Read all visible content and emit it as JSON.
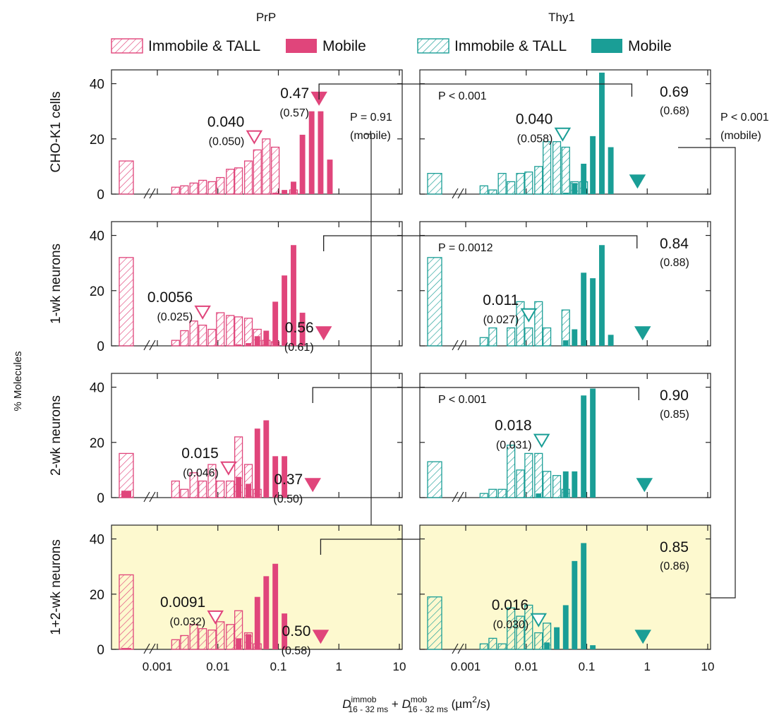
{
  "figure": {
    "column_titles": [
      "PrP",
      "Thy1"
    ],
    "row_labels": [
      "CHO-K1 cells",
      "1-wk neurons",
      "2-wk neurons",
      "1+2-wk neurons"
    ],
    "y_axis_label": "% Molecules",
    "x_axis_label": {
      "main1": "D",
      "sup1": "immob",
      "sub1": "16 - 32 ms",
      "plus": " + ",
      "main2": "D",
      "sup2": "mob",
      "sub2": "16 - 32 ms",
      "unit_open": " (µm",
      "unit_sup": "2",
      "unit_close": "/s)"
    },
    "legend": [
      {
        "label": "Immobile & TALL",
        "style": "hatched",
        "color": "#e0457b"
      },
      {
        "label": "Mobile",
        "style": "solid",
        "color": "#e0457b"
      },
      {
        "label": "Immobile & TALL",
        "style": "hatched",
        "color": "#1a9e96"
      },
      {
        "label": "Mobile",
        "style": "solid",
        "color": "#1a9e96"
      }
    ],
    "colors": {
      "prp": "#e0457b",
      "thy1": "#1a9e96",
      "highlight": "#fdf9cf"
    },
    "y_ticks": [
      "0",
      "20",
      "40"
    ],
    "x_ticks": [
      "0.001",
      "0.01",
      "0.1",
      "1",
      "10"
    ],
    "between_stats": [
      {
        "row": 1,
        "text": "P = 0.91",
        "sub": "(mobile)"
      },
      {
        "row": 1,
        "text": "P < 0.001",
        "sub": "(mobile)"
      }
    ]
  },
  "chart_data": {
    "type": "bar",
    "x_scale": "log",
    "xlim": [
      0.0001,
      10
    ],
    "ylim": [
      0,
      45
    ],
    "x_bin_centers": [
      0.0014,
      0.002,
      0.0028,
      0.004,
      0.0056,
      0.008,
      0.011,
      0.016,
      0.022,
      0.032,
      0.045,
      0.063,
      0.089,
      0.126,
      0.178,
      0.25,
      0.355,
      0.5,
      0.71,
      1.0,
      1.41,
      2.0,
      2.82
    ],
    "panels": [
      {
        "protein": "PrP",
        "row": "CHO-K1 cells",
        "color": "#e0457b",
        "highlight": false,
        "immobile_lowest_bin": 12,
        "mobile_lowest_bin": 0,
        "immobile": [
          0,
          2.5,
          3,
          4,
          5,
          4.5,
          6,
          9,
          9.5,
          12,
          16,
          20,
          17,
          0,
          1.5,
          0,
          0,
          0,
          0,
          0,
          0,
          0,
          0
        ],
        "mobile": [
          0,
          0,
          0,
          0,
          0,
          0,
          0,
          0,
          0,
          0,
          0,
          0,
          0.5,
          1.5,
          4.5,
          21.5,
          30,
          30,
          12.5,
          0,
          0,
          0,
          0
        ],
        "immobile_marker_x": 0.04,
        "mobile_marker_x": 0.47,
        "immob_label": "0.040",
        "immob_sub": "(0.050)",
        "mob_label": "0.47",
        "mob_sub": "(0.57)",
        "p_text": ""
      },
      {
        "protein": "Thy1",
        "row": "CHO-K1 cells",
        "color": "#1a9e96",
        "highlight": false,
        "immobile_lowest_bin": 7.5,
        "mobile_lowest_bin": 0,
        "immobile": [
          0,
          3,
          1.5,
          7.5,
          4.5,
          7.5,
          8,
          10,
          19,
          19,
          17,
          4.5,
          4.5,
          0,
          0,
          0,
          0,
          0,
          0,
          0,
          0,
          0,
          0
        ],
        "mobile": [
          0,
          0,
          0,
          0,
          0,
          0,
          0,
          0,
          0,
          0,
          0.5,
          4,
          11,
          21,
          44,
          17,
          0,
          0,
          0,
          0,
          0,
          0,
          0
        ],
        "immobile_marker_x": 0.04,
        "mobile_marker_x": 0.69,
        "immob_label": "0.040",
        "immob_sub": "(0.058)",
        "mob_label": "0.69",
        "mob_sub": "(0.68)",
        "p_text": "P < 0.001"
      },
      {
        "protein": "PrP",
        "row": "1-wk neurons",
        "color": "#e0457b",
        "highlight": false,
        "immobile_lowest_bin": 32,
        "mobile_lowest_bin": 0,
        "immobile": [
          0,
          2,
          5.5,
          9,
          7.5,
          6,
          12,
          11,
          10.5,
          10,
          6,
          2,
          1.5,
          0,
          0,
          0,
          0,
          0,
          0,
          0,
          0,
          0,
          0
        ],
        "mobile": [
          0,
          0,
          0,
          0,
          0,
          0,
          0,
          0,
          0.5,
          1,
          3.5,
          5.5,
          16,
          25.5,
          36.5,
          12,
          0,
          0,
          0,
          0,
          0,
          0,
          0
        ],
        "immobile_marker_x": 0.0056,
        "mobile_marker_x": 0.56,
        "immob_label": "0.0056",
        "immob_sub": "(0.025)",
        "mob_label": "0.56",
        "mob_sub": "(0.61)",
        "p_text": "P = 0.0012"
      },
      {
        "protein": "Thy1",
        "row": "1-wk neurons",
        "color": "#1a9e96",
        "highlight": false,
        "immobile_lowest_bin": 32,
        "mobile_lowest_bin": 0,
        "immobile": [
          0,
          3,
          6.5,
          0,
          6.5,
          16,
          6.5,
          16,
          6.5,
          0,
          13,
          0,
          0,
          0,
          0,
          0,
          0,
          0,
          0,
          0,
          0,
          0,
          0
        ],
        "mobile": [
          0,
          0,
          0,
          0,
          0,
          0,
          0,
          0,
          0,
          0,
          2,
          6,
          26.5,
          24.5,
          36.5,
          4,
          0,
          0,
          0,
          0,
          0,
          0,
          0
        ],
        "immobile_marker_x": 0.011,
        "mobile_marker_x": 0.84,
        "immob_label": "0.011",
        "immob_sub": "(0.027)",
        "mob_label": "0.84",
        "mob_sub": "(0.88)",
        "p_text": ""
      },
      {
        "protein": "PrP",
        "row": "2-wk neurons",
        "color": "#e0457b",
        "highlight": false,
        "immobile_lowest_bin": 16,
        "mobile_lowest_bin": 2.5,
        "immobile": [
          0,
          6,
          3,
          9,
          6,
          12,
          6,
          6,
          22,
          12,
          3,
          0,
          0,
          0,
          0,
          0,
          0,
          0,
          0,
          0,
          0,
          0,
          0
        ],
        "mobile": [
          0,
          0,
          0,
          0,
          0,
          0,
          0,
          0,
          7.5,
          5,
          25,
          28,
          15,
          15,
          0,
          0,
          0,
          0,
          0,
          0,
          0,
          0,
          0
        ],
        "immobile_marker_x": 0.015,
        "mobile_marker_x": 0.37,
        "immob_label": "0.015",
        "immob_sub": "(0.046)",
        "mob_label": "0.37",
        "mob_sub": "(0.50)",
        "p_text": "P < 0.001"
      },
      {
        "protein": "Thy1",
        "row": "2-wk neurons",
        "color": "#1a9e96",
        "highlight": false,
        "immobile_lowest_bin": 13,
        "mobile_lowest_bin": 0,
        "immobile": [
          0,
          1.5,
          3,
          3,
          19,
          10,
          16,
          16,
          9.5,
          8,
          3,
          0,
          0,
          0,
          0,
          0,
          0,
          0,
          0,
          0,
          0,
          0,
          0
        ],
        "mobile": [
          0,
          0,
          0,
          0,
          0,
          0,
          0,
          1.5,
          0,
          0,
          9.5,
          9.5,
          37,
          39.5,
          0,
          0,
          0,
          0,
          0,
          0,
          0,
          0,
          0
        ],
        "immobile_marker_x": 0.018,
        "mobile_marker_x": 0.9,
        "immob_label": "0.018",
        "immob_sub": "(0.031)",
        "mob_label": "0.90",
        "mob_sub": "(0.85)",
        "p_text": ""
      },
      {
        "protein": "PrP",
        "row": "1+2-wk neurons",
        "color": "#e0457b",
        "highlight": true,
        "immobile_lowest_bin": 27,
        "mobile_lowest_bin": 0.5,
        "immobile": [
          0,
          3.5,
          5,
          9,
          7.5,
          7,
          10,
          9,
          14,
          6,
          2,
          0,
          0,
          0,
          0,
          0,
          0,
          0,
          0,
          0,
          0,
          0,
          0
        ],
        "mobile": [
          0,
          0,
          0,
          0,
          0,
          0,
          0,
          0,
          4,
          5.5,
          19,
          26.5,
          31,
          13,
          0,
          0,
          0,
          0,
          0,
          0,
          0,
          0,
          0
        ],
        "immobile_marker_x": 0.0091,
        "mobile_marker_x": 0.5,
        "immob_label": "0.0091",
        "immob_sub": "(0.032)",
        "mob_label": "0.50",
        "mob_sub": "(0.58)",
        "p_text": "P < 0.001"
      },
      {
        "protein": "Thy1",
        "row": "1+2-wk neurons",
        "color": "#1a9e96",
        "highlight": true,
        "immobile_lowest_bin": 19,
        "mobile_lowest_bin": 0,
        "immobile": [
          0,
          2,
          4,
          2,
          15,
          12,
          16,
          6,
          9.5,
          0,
          0,
          0,
          0,
          0,
          0,
          0,
          0,
          0,
          0,
          0,
          0,
          0,
          0
        ],
        "mobile": [
          0,
          0,
          0,
          0,
          0,
          0,
          0,
          0,
          2.5,
          8,
          16,
          32,
          38.5,
          1.5,
          0,
          0,
          0,
          0,
          0,
          0,
          0,
          0,
          0
        ],
        "immobile_marker_x": 0.016,
        "mobile_marker_x": 0.85,
        "immob_label": "0.016",
        "immob_sub": "(0.030)",
        "mob_label": "0.85",
        "mob_sub": "(0.86)",
        "p_text": ""
      }
    ]
  }
}
